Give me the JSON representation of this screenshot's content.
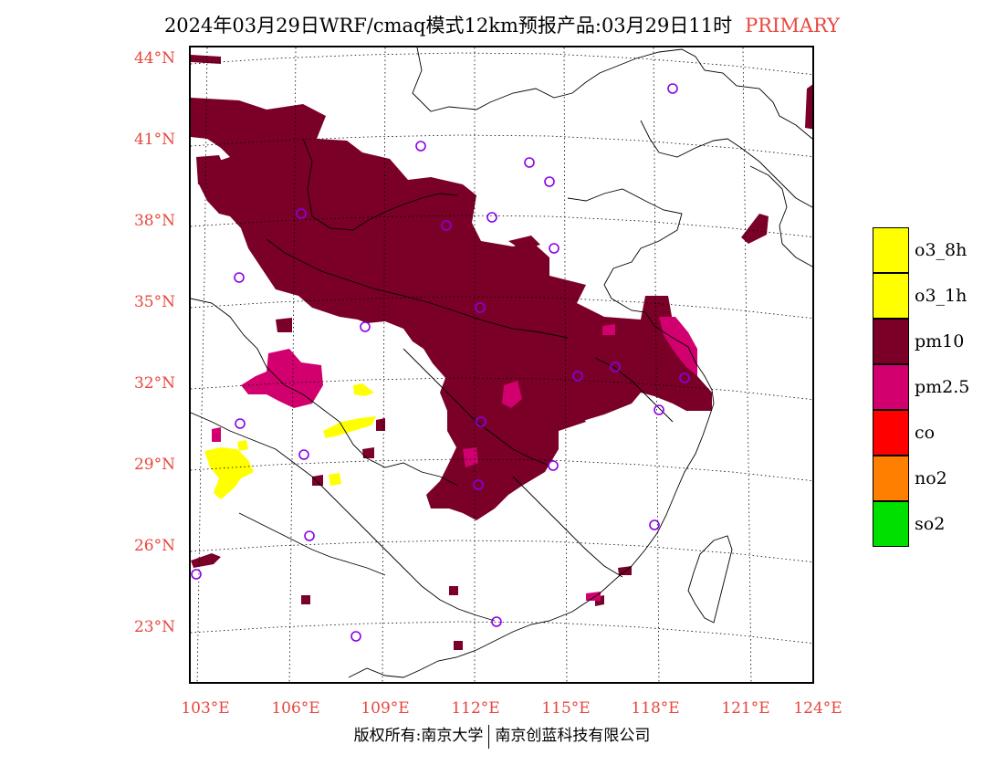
{
  "title": {
    "main": "2024年03月29日WRF/cmaq模式12km预报产品:03月29日11时",
    "tag": "PRIMARY"
  },
  "axes": {
    "lat_labels": [
      "44°N",
      "41°N",
      "38°N",
      "35°N",
      "32°N",
      "29°N",
      "26°N",
      "23°N"
    ],
    "lon_labels": [
      "103°E",
      "106°E",
      "109°E",
      "112°E",
      "115°E",
      "118°E",
      "121°E",
      "124°E"
    ]
  },
  "legend": {
    "items": [
      {
        "label": "o3_8h",
        "color": "#ffff00"
      },
      {
        "label": "o3_1h",
        "color": "#ffff00"
      },
      {
        "label": "pm10",
        "color": "#7a0028"
      },
      {
        "label": "pm2.5",
        "color": "#d2006e"
      },
      {
        "label": "co",
        "color": "#ff0000"
      },
      {
        "label": "no2",
        "color": "#ff7f00"
      },
      {
        "label": "so2",
        "color": "#00e000"
      }
    ]
  },
  "footer": {
    "left": "版权所有:南京大学",
    "right": "南京创蓝科技有限公司"
  },
  "colors": {
    "pm10": "#7a0028",
    "pm25": "#d2006e",
    "o3": "#ffff00",
    "station": "#8a00e6",
    "label_red": "#e8473e"
  }
}
